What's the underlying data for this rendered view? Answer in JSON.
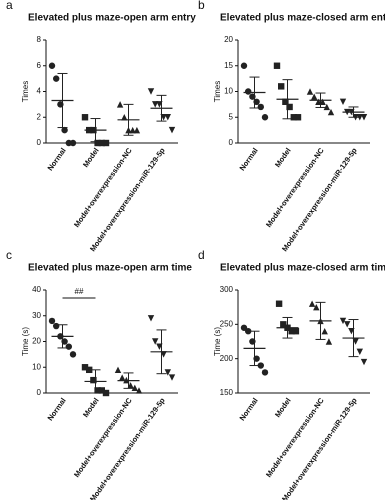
{
  "chart_data": [
    {
      "type": "dot",
      "panel": "a",
      "title": "Elevated plus maze-open arm entry",
      "ylabel": "Times",
      "categories": [
        "Normal",
        "Model",
        "Model+overexpression-NC",
        "Model+overexpression-miR-129-5p"
      ],
      "points": [
        [
          6,
          5,
          3,
          1,
          0,
          0
        ],
        [
          2,
          1,
          1,
          0,
          0,
          0
        ],
        [
          3,
          2,
          1,
          1,
          1
        ],
        [
          4,
          3,
          3,
          2,
          2,
          1
        ]
      ],
      "means": [
        3.3,
        1,
        1.8,
        2.7
      ],
      "sds": [
        2.1,
        0.9,
        1.2,
        1
      ],
      "ylim": [
        0,
        8
      ],
      "yticks": [
        0,
        2,
        4,
        6,
        8
      ],
      "color": "#222222"
    },
    {
      "type": "dot",
      "panel": "b",
      "title": "Elevated plus maze-closed arm entry",
      "ylabel": "Times",
      "categories": [
        "Normal",
        "Model",
        "Model+overexpression-NC",
        "Model+overexpression-miR-129-5p"
      ],
      "points": [
        [
          15,
          10,
          9,
          8,
          7,
          5
        ],
        [
          15,
          11,
          8,
          7,
          5,
          5
        ],
        [
          10,
          9,
          8,
          8,
          7,
          6
        ],
        [
          8,
          6,
          6,
          5,
          5,
          5
        ]
      ],
      "means": [
        9.8,
        8.5,
        8.3,
        6
      ],
      "sds": [
        3,
        3.8,
        1.4,
        1
      ],
      "ylim": [
        0,
        20
      ],
      "yticks": [
        0,
        5,
        10,
        15,
        20
      ],
      "color": "#222222"
    },
    {
      "type": "dot",
      "panel": "c",
      "title": "Elevated plus maze-open arm time",
      "ylabel": "Time (s)",
      "annotation": "##",
      "categories": [
        "Normal",
        "Model",
        "Model+overexpression-NC",
        "Model+overexpression-miR-129-5p"
      ],
      "points": [
        [
          28,
          26,
          22,
          20,
          18,
          15
        ],
        [
          10,
          9,
          5,
          1,
          1,
          0
        ],
        [
          9,
          6,
          5,
          3,
          2,
          1
        ],
        [
          29,
          20,
          18,
          15,
          8,
          6
        ]
      ],
      "means": [
        22,
        4.5,
        4.8,
        16
      ],
      "sds": [
        4.5,
        4.5,
        3,
        8.5
      ],
      "ylim": [
        0,
        40
      ],
      "yticks": [
        0,
        10,
        20,
        30,
        40
      ],
      "color": "#222222"
    },
    {
      "type": "dot",
      "panel": "d",
      "title": "Elevated plus maze-closed arm time",
      "ylabel": "Time (s)",
      "categories": [
        "Normal",
        "Model",
        "Model+overexpression-NC",
        "Model+overexpression-miR-129-5p"
      ],
      "points": [
        [
          245,
          240,
          225,
          200,
          190,
          180
        ],
        [
          280,
          250,
          245,
          240,
          240
        ],
        [
          280,
          275,
          255,
          240,
          225
        ],
        [
          255,
          250,
          240,
          225,
          210,
          195
        ]
      ],
      "means": [
        215,
        245,
        255,
        230
      ],
      "sds": [
        25,
        15,
        27,
        27
      ],
      "ylim": [
        150,
        300
      ],
      "yticks": [
        150,
        200,
        250,
        300
      ],
      "color": "#222222"
    }
  ]
}
